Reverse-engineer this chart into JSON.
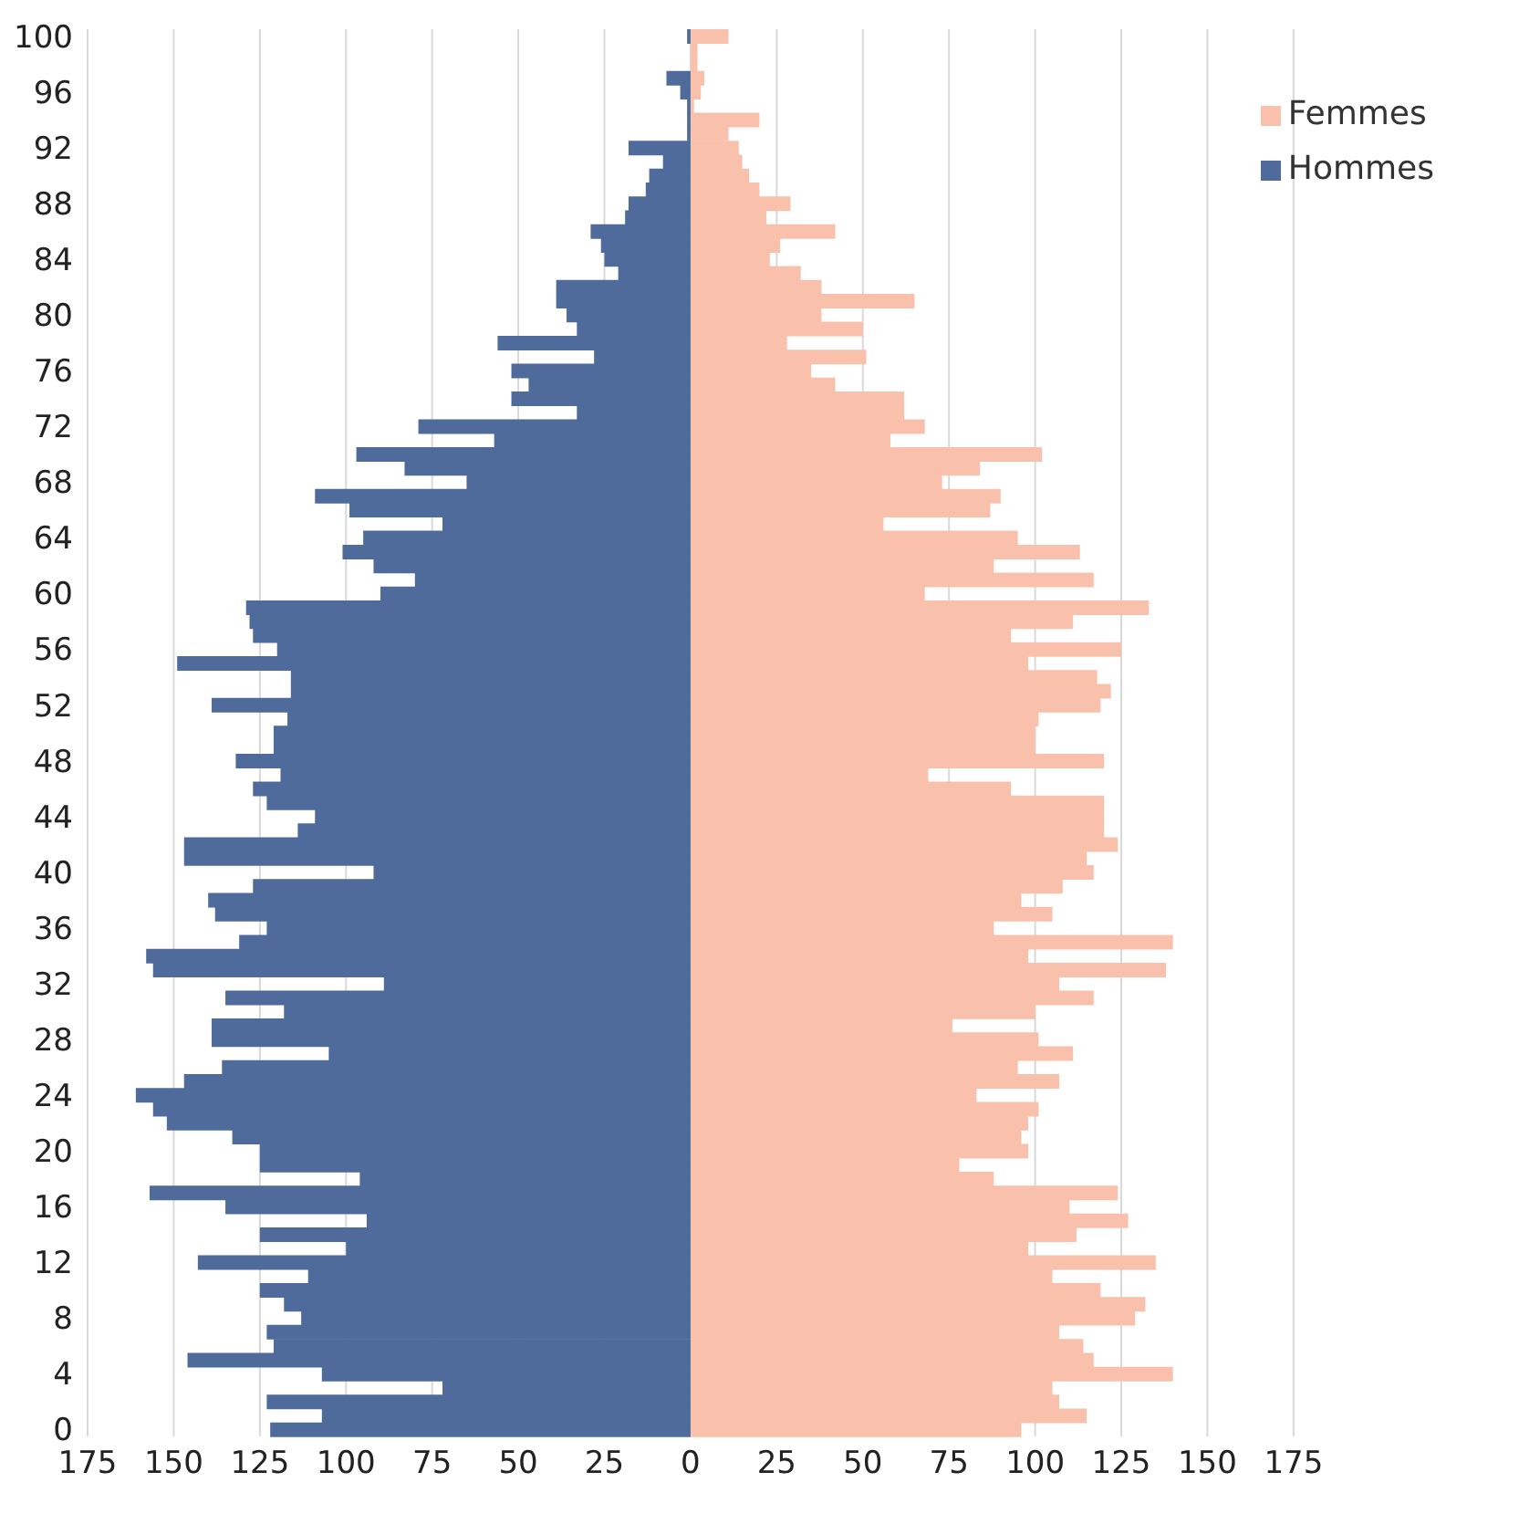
{
  "chart_data": {
    "type": "bar",
    "orientation": "horizontal",
    "stacked": true,
    "categories": [
      "100",
      null,
      null,
      null,
      "96",
      null,
      null,
      null,
      "92",
      null,
      null,
      null,
      "88",
      null,
      null,
      null,
      "84",
      null,
      null,
      null,
      "80",
      null,
      null,
      null,
      "76",
      null,
      null,
      null,
      "72",
      null,
      null,
      null,
      "68",
      null,
      null,
      null,
      "64",
      null,
      null,
      null,
      "60",
      null,
      null,
      null,
      "56",
      null,
      null,
      null,
      "52",
      null,
      null,
      null,
      "48",
      null,
      null,
      null,
      "44",
      null,
      null,
      null,
      "40",
      null,
      null,
      null,
      "36",
      null,
      null,
      null,
      "32",
      null,
      null,
      null,
      "28",
      null,
      null,
      null,
      "24",
      null,
      null,
      null,
      "20",
      null,
      null,
      null,
      "16",
      null,
      null,
      null,
      "12",
      null,
      null,
      null,
      "8",
      null,
      null,
      null,
      "4",
      null,
      null,
      null,
      "0"
    ],
    "series": [
      {
        "name": "Femmes",
        "color": "#f9c1ac",
        "values": [
          11,
          2,
          2,
          4,
          3,
          1,
          20,
          11,
          14,
          15,
          17,
          20,
          29,
          22,
          42,
          26,
          23,
          32,
          38,
          65,
          38,
          50,
          28,
          51,
          35,
          42,
          62,
          62,
          68,
          58,
          102,
          84,
          73,
          90,
          87,
          56,
          95,
          113,
          88,
          117,
          68,
          133,
          111,
          93,
          125,
          98,
          118,
          122,
          119,
          101,
          100,
          100,
          120,
          69,
          93,
          120,
          120,
          120,
          124,
          115,
          117,
          108,
          96,
          105,
          88,
          140,
          98,
          138,
          107,
          117,
          100,
          76,
          101,
          111,
          95,
          107,
          83,
          101,
          98,
          96,
          98,
          78,
          88,
          124,
          110,
          127,
          112,
          98,
          135,
          105,
          119,
          132,
          129,
          107,
          114,
          117,
          140,
          105,
          107,
          115,
          96
        ]
      },
      {
        "name": "Hommes",
        "color": "#4e6b9b",
        "values": [
          -1,
          0,
          0,
          -7,
          -3,
          -1,
          -1,
          -1,
          -18,
          -8,
          -12,
          -13,
          -18,
          -19,
          -29,
          -26,
          -25,
          -21,
          -39,
          -39,
          -36,
          -33,
          -56,
          -28,
          -52,
          -47,
          -52,
          -33,
          -79,
          -57,
          -97,
          -83,
          -65,
          -109,
          -99,
          -72,
          -95,
          -101,
          -92,
          -80,
          -90,
          -129,
          -128,
          -127,
          -120,
          -149,
          -116,
          -116,
          -139,
          -117,
          -121,
          -121,
          -132,
          -119,
          -127,
          -123,
          -109,
          -114,
          -147,
          -147,
          -92,
          -127,
          -140,
          -138,
          -123,
          -131,
          -158,
          -156,
          -89,
          -135,
          -118,
          -139,
          -139,
          -105,
          -136,
          -147,
          -161,
          -156,
          -152,
          -133,
          -125,
          -125,
          -96,
          -157,
          -135,
          -94,
          -125,
          -100,
          -143,
          -111,
          -125,
          -118,
          -113,
          -123,
          -121,
          -146,
          -107,
          -72,
          -123,
          -107,
          -122
        ]
      }
    ],
    "xlim": [
      -175,
      175
    ],
    "xticks": [
      {
        "value": -175,
        "label": "175"
      },
      {
        "value": -150,
        "label": "150"
      },
      {
        "value": -125,
        "label": "125"
      },
      {
        "value": -100,
        "label": "100"
      },
      {
        "value": -75,
        "label": "75"
      },
      {
        "value": -50,
        "label": "50"
      },
      {
        "value": -25,
        "label": "25"
      },
      0,
      25,
      50,
      75,
      100,
      125,
      150,
      175
    ],
    "grid": "x",
    "legend": "top right"
  }
}
